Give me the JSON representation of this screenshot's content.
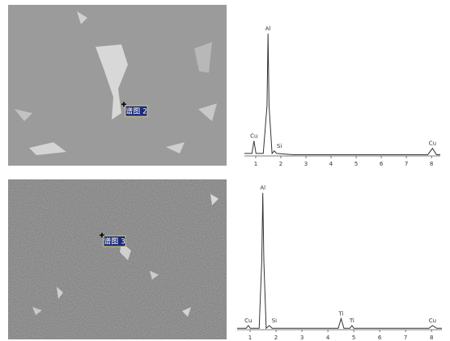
{
  "images": [
    {
      "label": "谱图 2"
    },
    {
      "label": "谱图 3"
    }
  ],
  "chart_data": [
    {
      "type": "line",
      "xlim": [
        0.55,
        8.35
      ],
      "ylim": [
        0,
        100
      ],
      "xticks": [
        1,
        2,
        3,
        4,
        5,
        6,
        7,
        8
      ],
      "color": "#333333",
      "x": [
        0.55,
        0.85,
        0.93,
        1.01,
        1.3,
        1.45,
        1.49,
        1.53,
        1.65,
        1.74,
        1.83,
        2.5,
        4,
        6,
        7.85,
        8.04,
        8.2,
        8.35
      ],
      "values": [
        2,
        2,
        12,
        2,
        2,
        40,
        97,
        40,
        2,
        4,
        2,
        1,
        1,
        1,
        1,
        6,
        1,
        1
      ],
      "peak_labels": [
        {
          "text": "Al",
          "x": 1.49
        },
        {
          "text": "Cu",
          "x": 0.93
        },
        {
          "text": "Si",
          "x": 1.74
        },
        {
          "text": "Cu",
          "x": 8.04
        }
      ]
    },
    {
      "type": "line",
      "xlim": [
        0.5,
        8.4
      ],
      "ylim": [
        0,
        100
      ],
      "xticks": [
        1,
        2,
        3,
        4,
        5,
        6,
        7,
        8
      ],
      "color": "#333333",
      "x": [
        0.5,
        0.85,
        0.93,
        1.01,
        1.35,
        1.45,
        1.49,
        1.53,
        1.62,
        1.74,
        1.85,
        3,
        4.4,
        4.51,
        4.62,
        4.85,
        4.93,
        5.0,
        6,
        7.9,
        8.04,
        8.2,
        8.4
      ],
      "values": [
        1,
        1,
        3,
        1,
        1,
        50,
        99,
        50,
        1,
        3,
        1,
        1,
        1,
        8,
        1,
        1,
        3,
        1,
        1,
        1,
        3,
        1,
        1
      ],
      "peak_labels": [
        {
          "text": "Al",
          "x": 1.49
        },
        {
          "text": "Cu",
          "x": 0.93
        },
        {
          "text": "Si",
          "x": 1.74
        },
        {
          "text": "Ti",
          "x": 4.51
        },
        {
          "text": "Ti",
          "x": 4.93
        },
        {
          "text": "Cu",
          "x": 8.04
        }
      ]
    }
  ]
}
